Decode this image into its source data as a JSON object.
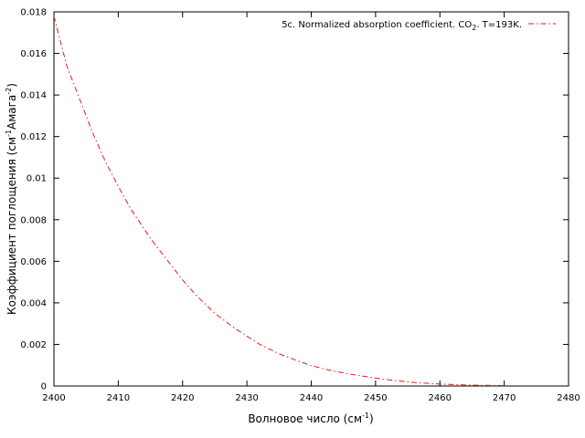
{
  "chart_data": {
    "type": "line",
    "title": "",
    "xlabel": "Волновое число (см",
    "xlabel_sup": "-1",
    "xlabel_tail": ")",
    "ylabel": "Коэффициент поглощения (см",
    "ylabel_sup1": "-1",
    "ylabel_mid": "Амага",
    "ylabel_sup2": "-2",
    "ylabel_tail": ")",
    "xlim": [
      2400,
      2480
    ],
    "ylim": [
      0,
      0.018
    ],
    "x_ticks": [
      2400,
      2410,
      2420,
      2430,
      2440,
      2450,
      2460,
      2470,
      2480
    ],
    "y_ticks": [
      0,
      0.002,
      0.004,
      0.006,
      0.008,
      0.01,
      0.012,
      0.014,
      0.016,
      0.018
    ],
    "x_tick_labels": [
      "2400",
      "2410",
      "2420",
      "2430",
      "2440",
      "2450",
      "2460",
      "2470",
      "2480"
    ],
    "y_tick_labels": [
      "0",
      "0.002",
      "0.004",
      "0.006",
      "0.008",
      "0.01",
      "0.012",
      "0.014",
      "0.016",
      "0.018"
    ],
    "grid": false,
    "legend_position": "top-right",
    "series": [
      {
        "legend_main": "5c. Normalized absorption coefficient. CO",
        "legend_sub": "2",
        "legend_tail": ". T=193K.",
        "color": "#e41a1c",
        "dash": "dash-dot",
        "x": [
          2400,
          2401,
          2402,
          2404,
          2406,
          2408,
          2410,
          2412,
          2415,
          2418,
          2420,
          2422,
          2425,
          2428,
          2430,
          2432,
          2435,
          2438,
          2440,
          2443,
          2446,
          2450,
          2453,
          2456,
          2460,
          2465,
          2470
        ],
        "y": [
          0.0178,
          0.0166,
          0.0154,
          0.0138,
          0.0122,
          0.0108,
          0.0096,
          0.0085,
          0.0071,
          0.0059,
          0.0051,
          0.0044,
          0.0035,
          0.0028,
          0.0024,
          0.002,
          0.00155,
          0.0012,
          0.00098,
          0.00075,
          0.00057,
          0.00038,
          0.00026,
          0.00017,
          9e-05,
          4e-05,
          2e-05
        ]
      }
    ]
  }
}
